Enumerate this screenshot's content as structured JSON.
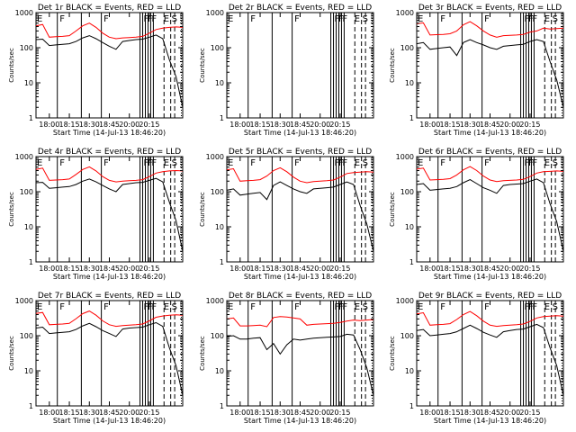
{
  "chart_data": {
    "type": "line",
    "ylabel": "Counts/sec",
    "xlabel": "Start Time (14-Jul-13 18:46:20)",
    "x_ticks": [
      "18:00",
      "18:15",
      "18:30",
      "18:45",
      "20:00",
      "20:15"
    ],
    "y_ticks": [
      "1",
      "10",
      "100",
      "1000"
    ],
    "y_scale": "log",
    "ylim": [
      1,
      1000
    ],
    "grid": false,
    "series_names": [
      "Events",
      "LLD"
    ],
    "series_colors": {
      "events": "#000000",
      "lld": "#ff0000"
    },
    "x_minutes": [
      0,
      5,
      10,
      15,
      20,
      25,
      30,
      35,
      40,
      45,
      50,
      55,
      60,
      65,
      70,
      75,
      80,
      85,
      90,
      95,
      100,
      105,
      110
    ],
    "panels": [
      {
        "title": "Det 1r BLACK = Events, RED = LLD",
        "flags": [
          {
            "x": 0,
            "t": "E"
          },
          {
            "x": 17,
            "t": "F"
          },
          {
            "x": 50,
            "t": "F"
          },
          {
            "x": 80,
            "t": "F"
          },
          {
            "x": 83,
            "t": "F"
          },
          {
            "x": 86,
            "t": "F"
          },
          {
            "x": 95,
            "t": "E"
          },
          {
            "x": 101,
            "t": "S"
          }
        ],
        "solid_lines": [
          16,
          34,
          49,
          78,
          80,
          82,
          84,
          86,
          88
        ],
        "dashed_lines": [
          96,
          101,
          104
        ],
        "dotted_lines": [
          109
        ],
        "events": [
          170,
          175,
          115,
          120,
          125,
          130,
          150,
          190,
          220,
          180,
          140,
          110,
          90,
          150,
          160,
          170,
          175,
          200,
          230,
          180,
          45,
          15,
          2
        ],
        "lld": [
          420,
          460,
          200,
          205,
          210,
          220,
          300,
          420,
          500,
          380,
          260,
          200,
          180,
          190,
          195,
          200,
          210,
          260,
          330,
          360,
          380,
          390,
          380
        ]
      },
      {
        "title": "Det 2r BLACK = Events, RED = LLD",
        "flags": [
          {
            "x": 0,
            "t": "E"
          },
          {
            "x": 17,
            "t": "F"
          },
          {
            "x": 50,
            "t": "F"
          },
          {
            "x": 80,
            "t": "F"
          },
          {
            "x": 83,
            "t": "F"
          },
          {
            "x": 86,
            "t": "F"
          },
          {
            "x": 95,
            "t": "E"
          },
          {
            "x": 101,
            "t": "S"
          }
        ],
        "solid_lines": [
          16,
          34,
          49,
          78,
          80,
          82,
          84,
          86,
          88
        ],
        "dashed_lines": [
          96,
          101,
          104
        ],
        "dotted_lines": [
          109
        ],
        "events": [],
        "lld": []
      },
      {
        "title": "Det 3r BLACK = Events, RED = LLD",
        "flags": [
          {
            "x": 0,
            "t": "E"
          },
          {
            "x": 17,
            "t": "F"
          },
          {
            "x": 50,
            "t": "F"
          },
          {
            "x": 80,
            "t": "F"
          },
          {
            "x": 83,
            "t": "F"
          },
          {
            "x": 86,
            "t": "F"
          },
          {
            "x": 95,
            "t": "E"
          },
          {
            "x": 101,
            "t": "S"
          }
        ],
        "solid_lines": [
          16,
          34,
          49,
          78,
          80,
          82,
          84,
          86,
          88
        ],
        "dashed_lines": [
          96,
          101,
          104
        ],
        "dotted_lines": [
          109
        ],
        "events": [
          130,
          140,
          90,
          95,
          100,
          105,
          60,
          140,
          170,
          140,
          120,
          100,
          90,
          110,
          115,
          120,
          125,
          150,
          170,
          150,
          40,
          12,
          2
        ],
        "lld": [
          480,
          510,
          230,
          235,
          240,
          250,
          300,
          450,
          550,
          420,
          300,
          230,
          200,
          220,
          225,
          230,
          240,
          280,
          300,
          360,
          340,
          350,
          360
        ]
      },
      {
        "title": "Det 4r BLACK = Events, RED = LLD",
        "flags": [
          {
            "x": 0,
            "t": "E"
          },
          {
            "x": 17,
            "t": "F"
          },
          {
            "x": 50,
            "t": "F"
          },
          {
            "x": 80,
            "t": "F"
          },
          {
            "x": 83,
            "t": "F"
          },
          {
            "x": 86,
            "t": "F"
          },
          {
            "x": 95,
            "t": "E"
          },
          {
            "x": 101,
            "t": "S"
          }
        ],
        "solid_lines": [
          16,
          34,
          49,
          78,
          80,
          82,
          84,
          86,
          88
        ],
        "dashed_lines": [
          96,
          101,
          104
        ],
        "dotted_lines": [
          109
        ],
        "events": [
          180,
          185,
          125,
          130,
          135,
          140,
          160,
          200,
          230,
          190,
          150,
          120,
          100,
          160,
          170,
          180,
          185,
          210,
          240,
          190,
          50,
          15,
          2
        ],
        "lld": [
          430,
          470,
          210,
          215,
          220,
          230,
          310,
          430,
          510,
          390,
          270,
          210,
          190,
          200,
          205,
          210,
          220,
          270,
          340,
          370,
          390,
          400,
          390
        ]
      },
      {
        "title": "Det 5r BLACK = Events, RED = LLD",
        "flags": [
          {
            "x": 0,
            "t": "E"
          },
          {
            "x": 17,
            "t": "F"
          },
          {
            "x": 50,
            "t": "F"
          },
          {
            "x": 80,
            "t": "F"
          },
          {
            "x": 83,
            "t": "F"
          },
          {
            "x": 86,
            "t": "F"
          },
          {
            "x": 95,
            "t": "E"
          },
          {
            "x": 101,
            "t": "S"
          }
        ],
        "solid_lines": [
          16,
          34,
          49,
          78,
          80,
          82,
          84,
          86,
          88
        ],
        "dashed_lines": [
          96,
          101,
          104
        ],
        "dotted_lines": [
          109
        ],
        "events": [
          110,
          120,
          80,
          85,
          90,
          95,
          60,
          150,
          190,
          150,
          120,
          100,
          90,
          120,
          125,
          130,
          135,
          160,
          190,
          160,
          40,
          12,
          2
        ],
        "lld": [
          420,
          450,
          200,
          205,
          210,
          220,
          280,
          400,
          480,
          370,
          260,
          200,
          180,
          195,
          200,
          205,
          215,
          260,
          330,
          350,
          360,
          370,
          360
        ]
      },
      {
        "title": "Det 6r BLACK = Events, RED = LLD",
        "flags": [
          {
            "x": 0,
            "t": "E"
          },
          {
            "x": 17,
            "t": "F"
          },
          {
            "x": 50,
            "t": "F"
          },
          {
            "x": 80,
            "t": "F"
          },
          {
            "x": 83,
            "t": "F"
          },
          {
            "x": 86,
            "t": "F"
          },
          {
            "x": 95,
            "t": "E"
          },
          {
            "x": 101,
            "t": "S"
          }
        ],
        "solid_lines": [
          16,
          34,
          49,
          78,
          80,
          82,
          84,
          86,
          88
        ],
        "dashed_lines": [
          96,
          101,
          104
        ],
        "dotted_lines": [
          109
        ],
        "events": [
          160,
          170,
          110,
          115,
          120,
          125,
          140,
          180,
          220,
          170,
          130,
          110,
          90,
          150,
          160,
          165,
          170,
          200,
          230,
          180,
          45,
          14,
          2
        ],
        "lld": [
          440,
          470,
          215,
          220,
          225,
          235,
          300,
          420,
          520,
          400,
          280,
          215,
          195,
          205,
          210,
          215,
          225,
          270,
          340,
          370,
          380,
          390,
          380
        ]
      },
      {
        "title": "Det 7r BLACK = Events, RED = LLD",
        "flags": [
          {
            "x": 0,
            "t": "E"
          },
          {
            "x": 17,
            "t": "F"
          },
          {
            "x": 50,
            "t": "F"
          },
          {
            "x": 80,
            "t": "F"
          },
          {
            "x": 83,
            "t": "F"
          },
          {
            "x": 86,
            "t": "F"
          },
          {
            "x": 95,
            "t": "E"
          },
          {
            "x": 101,
            "t": "S"
          }
        ],
        "solid_lines": [
          16,
          34,
          49,
          78,
          80,
          82,
          84,
          86,
          88
        ],
        "dashed_lines": [
          96,
          101,
          104
        ],
        "dotted_lines": [
          109
        ],
        "events": [
          165,
          175,
          115,
          120,
          125,
          130,
          150,
          190,
          225,
          180,
          140,
          115,
          95,
          155,
          165,
          170,
          175,
          205,
          235,
          185,
          45,
          14,
          2
        ],
        "lld": [
          430,
          460,
          205,
          210,
          215,
          225,
          305,
          425,
          505,
          385,
          265,
          205,
          185,
          195,
          200,
          205,
          215,
          265,
          335,
          365,
          385,
          395,
          385
        ]
      },
      {
        "title": "Det 8r BLACK = Events, RED = LLD",
        "flags": [
          {
            "x": 0,
            "t": "E"
          },
          {
            "x": 17,
            "t": "F"
          },
          {
            "x": 50,
            "t": "F"
          },
          {
            "x": 80,
            "t": "F"
          },
          {
            "x": 83,
            "t": "F"
          },
          {
            "x": 86,
            "t": "F"
          },
          {
            "x": 95,
            "t": "E"
          },
          {
            "x": 101,
            "t": "S"
          }
        ],
        "solid_lines": [
          16,
          34,
          49,
          78,
          80,
          82,
          84,
          86,
          88
        ],
        "dashed_lines": [
          96,
          101,
          104
        ],
        "dotted_lines": [
          109
        ],
        "events": [
          95,
          100,
          80,
          80,
          85,
          88,
          40,
          60,
          30,
          55,
          80,
          75,
          80,
          85,
          88,
          90,
          92,
          95,
          110,
          105,
          40,
          12,
          2
        ],
        "lld": [
          300,
          320,
          190,
          190,
          195,
          200,
          180,
          330,
          350,
          340,
          320,
          300,
          200,
          210,
          215,
          220,
          225,
          240,
          260,
          280,
          270,
          280,
          290
        ]
      },
      {
        "title": "Det 9r BLACK = Events, RED = LLD",
        "flags": [
          {
            "x": 0,
            "t": "E"
          },
          {
            "x": 17,
            "t": "F"
          },
          {
            "x": 50,
            "t": "F"
          },
          {
            "x": 80,
            "t": "F"
          },
          {
            "x": 83,
            "t": "F"
          },
          {
            "x": 86,
            "t": "F"
          },
          {
            "x": 95,
            "t": "E"
          },
          {
            "x": 101,
            "t": "S"
          }
        ],
        "solid_lines": [
          16,
          34,
          49,
          78,
          80,
          82,
          84,
          86,
          88
        ],
        "dashed_lines": [
          96,
          101,
          104
        ],
        "dotted_lines": [
          109
        ],
        "events": [
          140,
          150,
          100,
          105,
          110,
          115,
          130,
          160,
          200,
          160,
          125,
          105,
          90,
          130,
          140,
          150,
          155,
          180,
          210,
          170,
          45,
          14,
          2
        ],
        "lld": [
          420,
          450,
          200,
          205,
          210,
          220,
          290,
          400,
          490,
          370,
          260,
          200,
          185,
          195,
          200,
          205,
          215,
          255,
          320,
          350,
          360,
          370,
          360
        ]
      }
    ]
  }
}
